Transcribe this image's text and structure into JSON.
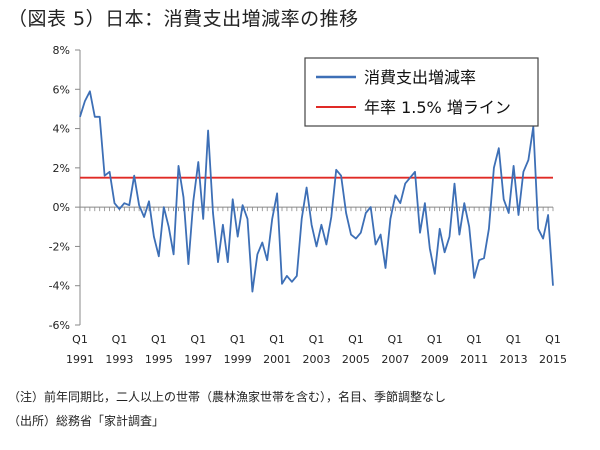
{
  "chart_data": {
    "type": "line",
    "title": "（図表 5）日本：消費支出増減率の推移",
    "xlabel": "",
    "ylabel": "",
    "ylim": [
      -6,
      8
    ],
    "y_ticks": [
      "8%",
      "6%",
      "4%",
      "2%",
      "0%",
      "-2%",
      "-4%",
      "-6%"
    ],
    "y_tick_values": [
      8,
      6,
      4,
      2,
      0,
      -2,
      -4,
      -6
    ],
    "x_start": "1991 Q1",
    "x_end": "2015 Q1",
    "x_tick_labels": [
      {
        "q": "Q1",
        "year": "1991"
      },
      {
        "q": "Q1",
        "year": "1993"
      },
      {
        "q": "Q1",
        "year": "1995"
      },
      {
        "q": "Q1",
        "year": "1997"
      },
      {
        "q": "Q1",
        "year": "1999"
      },
      {
        "q": "Q1",
        "year": "2001"
      },
      {
        "q": "Q1",
        "year": "2003"
      },
      {
        "q": "Q1",
        "year": "2005"
      },
      {
        "q": "Q1",
        "year": "2007"
      },
      {
        "q": "Q1",
        "year": "2009"
      },
      {
        "q": "Q1",
        "year": "2011"
      },
      {
        "q": "Q1",
        "year": "2013"
      },
      {
        "q": "Q1",
        "year": "2015"
      }
    ],
    "legend_position": "top-right",
    "grid": false,
    "series": [
      {
        "name": "消費支出増減率",
        "color": "#3d6fb6",
        "values": [
          4.6,
          5.4,
          5.9,
          4.6,
          4.6,
          1.6,
          1.8,
          0.2,
          -0.1,
          0.2,
          0.1,
          1.6,
          0.1,
          -0.5,
          0.3,
          -1.5,
          -2.5,
          0.0,
          -1.0,
          -2.4,
          2.1,
          0.5,
          -2.9,
          0.3,
          2.3,
          -0.6,
          3.9,
          -0.3,
          -2.8,
          -0.9,
          -2.8,
          0.4,
          -1.5,
          0.1,
          -0.6,
          -4.3,
          -2.4,
          -1.8,
          -2.7,
          -0.6,
          0.7,
          -3.9,
          -3.5,
          -3.8,
          -3.5,
          -0.6,
          1.0,
          -0.9,
          -2.0,
          -0.9,
          -1.9,
          -0.5,
          1.9,
          1.6,
          -0.3,
          -1.4,
          -1.6,
          -1.3,
          -0.3,
          0.0,
          -1.9,
          -1.4,
          -3.1,
          -0.6,
          0.6,
          0.2,
          1.2,
          1.5,
          1.8,
          -1.3,
          0.2,
          -2.1,
          -3.4,
          -1.1,
          -2.3,
          -1.5,
          1.2,
          -1.4,
          0.2,
          -1.0,
          -3.6,
          -2.7,
          -2.6,
          -1.1,
          2.0,
          3.0,
          0.4,
          -0.3,
          2.1,
          -0.4,
          1.8,
          2.4,
          4.1,
          -1.1,
          -1.6,
          -0.4,
          -4.0
        ]
      },
      {
        "name": "年率 1.5% 増ライン",
        "color": "#e02a26",
        "values": "constant",
        "constant_value": 1.5
      }
    ]
  },
  "notes": {
    "note_1": "（注）前年同期比，二人以上の世帯（農林漁家世帯を含む），名目、季節調整なし",
    "note_2": "（出所）総務省「家計調査」"
  },
  "colors": {
    "axis": "#888888",
    "legend_border": "#444444"
  }
}
